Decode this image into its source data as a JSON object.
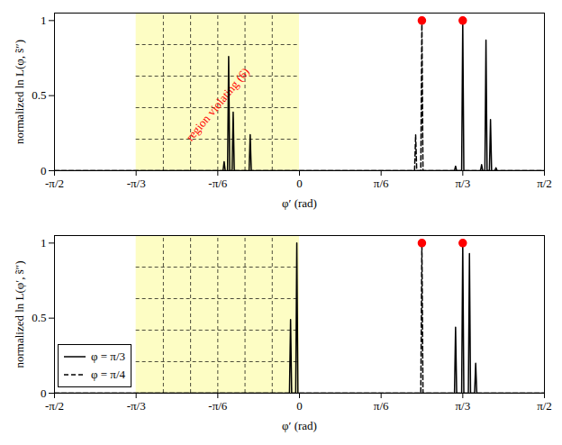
{
  "chart_data": [
    {
      "type": "line",
      "xlabel": "φ′ (rad)",
      "ylabel": "normalized ln L(φ, s̃″)",
      "xlim": [
        -1.5708,
        1.5708
      ],
      "ylim": [
        0,
        1.05
      ],
      "xticks": [
        {
          "value": -1.5708,
          "label": "-π/2"
        },
        {
          "value": -1.0472,
          "label": "-π/3"
        },
        {
          "value": -0.5236,
          "label": "-π/6"
        },
        0,
        {
          "value": 0.5236,
          "label": "π/6"
        },
        {
          "value": 1.0472,
          "label": "π/3"
        },
        {
          "value": 1.5708,
          "label": "π/2"
        }
      ],
      "yticks": [
        0,
        0.5,
        1
      ],
      "region": {
        "x": [
          -1.0472,
          0
        ],
        "color": "#fdfdc4",
        "grid": true
      },
      "annotations": [
        {
          "text": "region violating (6)",
          "color": "#ff0000"
        }
      ],
      "series": [
        {
          "name": "φ = π/3",
          "color": "#000000",
          "line_style": "solid",
          "x": [
            -1.5708,
            -0.49,
            -0.483,
            -0.476,
            -0.461,
            -0.454,
            -0.447,
            -0.432,
            -0.425,
            -0.418,
            -0.323,
            -0.316,
            -0.309,
            0.994,
            1.001,
            1.008,
            1.04,
            1.047,
            1.054,
            1.161,
            1.168,
            1.175,
            1.189,
            1.196,
            1.203,
            1.218,
            1.225,
            1.232,
            1.253,
            1.26,
            1.267,
            1.5708
          ],
          "values": [
            0,
            0,
            0.06,
            0,
            0,
            0.76,
            0,
            0,
            0.39,
            0,
            0,
            0.24,
            0,
            0,
            0.03,
            0,
            0,
            1.0,
            0,
            0,
            0.04,
            0,
            0,
            0.87,
            0,
            0,
            0.34,
            0,
            0,
            0.02,
            0,
            0
          ]
        },
        {
          "name": "φ = π/4",
          "color": "#000000",
          "line_style": "dashed",
          "x": [
            -1.5708,
            0.738,
            0.745,
            0.752,
            0.778,
            0.785,
            0.792,
            1.5708
          ],
          "values": [
            0,
            0,
            0.24,
            0,
            0,
            1.0,
            0,
            0
          ]
        }
      ],
      "peaks": {
        "x": [
          0.785,
          1.047
        ],
        "values": [
          1.0,
          1.0
        ],
        "color": "#ff0000",
        "marker": "circle"
      }
    },
    {
      "type": "line",
      "xlabel": "φ′ (rad)",
      "ylabel": "normalized ln L(φ′, s̃″)",
      "xlim": [
        -1.5708,
        1.5708
      ],
      "ylim": [
        0,
        1.05
      ],
      "xticks": [
        {
          "value": -1.5708,
          "label": "-π/2"
        },
        {
          "value": -1.0472,
          "label": "-π/3"
        },
        {
          "value": -0.5236,
          "label": "-π/6"
        },
        0,
        {
          "value": 0.5236,
          "label": "π/6"
        },
        {
          "value": 1.0472,
          "label": "π/3"
        },
        {
          "value": 1.5708,
          "label": "π/2"
        }
      ],
      "yticks": [
        0,
        0.5,
        1
      ],
      "region": {
        "x": [
          -1.0472,
          0
        ],
        "color": "#fdfdc4",
        "grid": true
      },
      "legend": "southwest",
      "series": [
        {
          "name": "φ = π/3",
          "color": "#000000",
          "line_style": "solid",
          "x": [
            -1.5708,
            -0.064,
            -0.057,
            -0.05,
            -0.024,
            -0.017,
            -0.01,
            0.994,
            1.001,
            1.008,
            1.04,
            1.047,
            1.054,
            1.083,
            1.09,
            1.097,
            1.123,
            1.13,
            1.137,
            1.5708
          ],
          "values": [
            0,
            0,
            0.49,
            0,
            0,
            1.0,
            0,
            0,
            0.44,
            0,
            0,
            1.0,
            0,
            0,
            0.93,
            0,
            0,
            0.2,
            0,
            0
          ]
        },
        {
          "name": "φ = π/4",
          "color": "#000000",
          "line_style": "dashed",
          "x": [
            -1.5708,
            0.778,
            0.785,
            0.792,
            1.5708
          ],
          "values": [
            0,
            0,
            1.0,
            0,
            0
          ]
        }
      ],
      "peaks": {
        "x": [
          0.785,
          1.047
        ],
        "values": [
          1.0,
          1.0
        ],
        "color": "#ff0000",
        "marker": "circle"
      }
    }
  ]
}
